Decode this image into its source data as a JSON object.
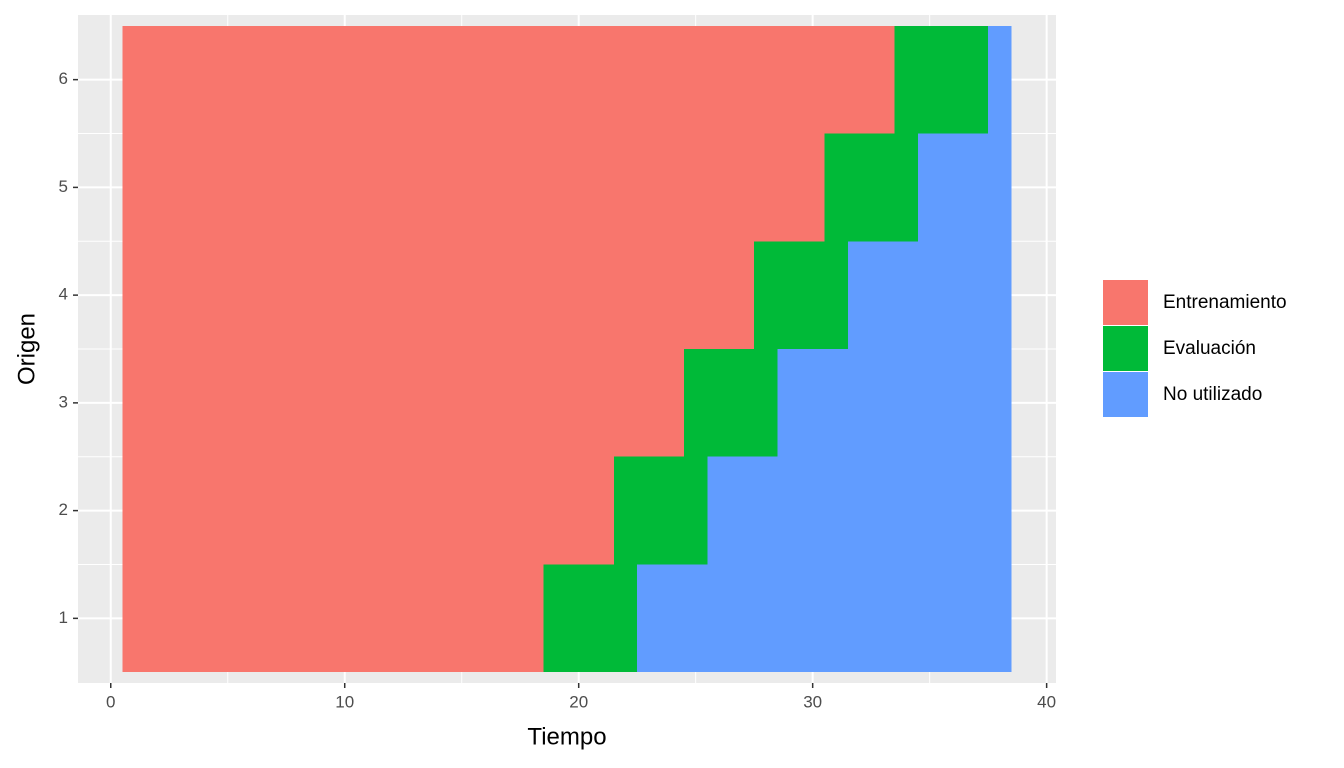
{
  "chart_data": {
    "type": "tile",
    "x_label": "Tiempo",
    "y_label": "Origen",
    "origins": [
      1,
      2,
      3,
      4,
      5,
      6
    ],
    "series": [
      {
        "name": "Entrenamiento",
        "color": "#F8766D",
        "start": [
          1,
          1,
          1,
          1,
          1,
          1
        ],
        "end": [
          18,
          21,
          24,
          27,
          30,
          33
        ]
      },
      {
        "name": "Evaluación",
        "color": "#00BA38",
        "start": [
          19,
          22,
          25,
          28,
          31,
          34
        ],
        "end": [
          22,
          25,
          28,
          31,
          34,
          37
        ]
      },
      {
        "name": "No utilizado",
        "color": "#619CFF",
        "start": [
          23,
          26,
          29,
          32,
          35,
          38
        ],
        "end": [
          38,
          38,
          38,
          38,
          38,
          38
        ]
      }
    ],
    "xlim": [
      -1.4,
      40.4
    ],
    "xticks": [
      0,
      10,
      20,
      30,
      40
    ],
    "ylim": [
      0.4,
      6.6
    ],
    "yticks": [
      1,
      2,
      3,
      4,
      5,
      6
    ],
    "grid": true,
    "legend": "right"
  }
}
